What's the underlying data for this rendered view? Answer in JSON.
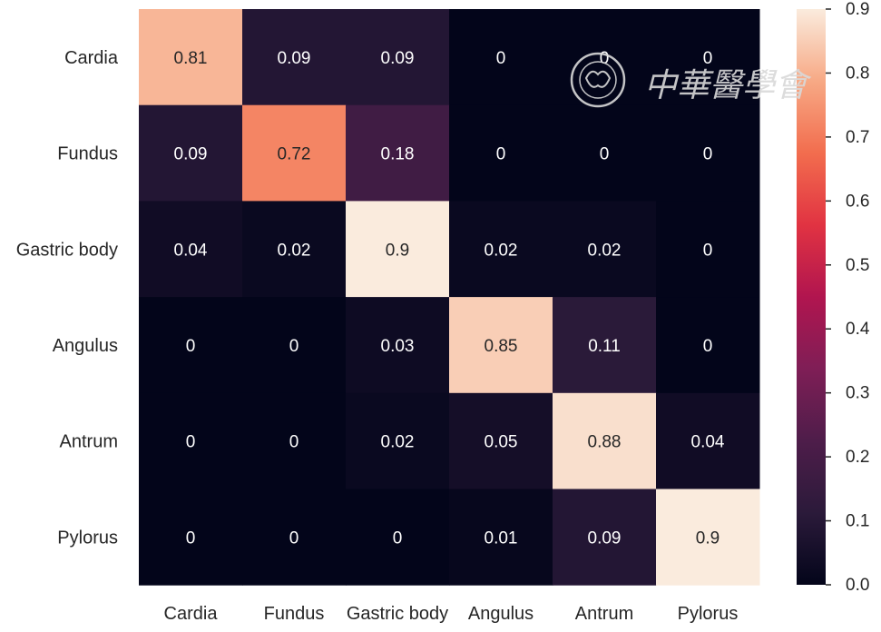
{
  "chart_data": {
    "type": "heatmap",
    "title": "",
    "xlabel": "",
    "ylabel": "",
    "row_labels": [
      "Cardia",
      "Fundus",
      "Gastric body",
      "Angulus",
      "Antrum",
      "Pylorus"
    ],
    "col_labels": [
      "Cardia",
      "Fundus",
      "Gastric body",
      "Angulus",
      "Antrum",
      "Pylorus"
    ],
    "values": [
      [
        0.81,
        0.09,
        0.09,
        0,
        0,
        0
      ],
      [
        0.09,
        0.72,
        0.18,
        0,
        0,
        0
      ],
      [
        0.04,
        0.02,
        0.9,
        0.02,
        0.02,
        0
      ],
      [
        0,
        0,
        0.03,
        0.85,
        0.11,
        0
      ],
      [
        0,
        0,
        0.02,
        0.05,
        0.88,
        0.04
      ],
      [
        0,
        0,
        0,
        0.01,
        0.09,
        0.9
      ]
    ],
    "colorbar": {
      "range": [
        0,
        0.9
      ],
      "ticks": [
        "0.0",
        "0.1",
        "0.2",
        "0.3",
        "0.4",
        "0.5",
        "0.6",
        "0.7",
        "0.8",
        "0.9"
      ]
    },
    "colormap": "rocket",
    "grid": false
  },
  "watermark": {
    "text": "中華醫學會"
  }
}
